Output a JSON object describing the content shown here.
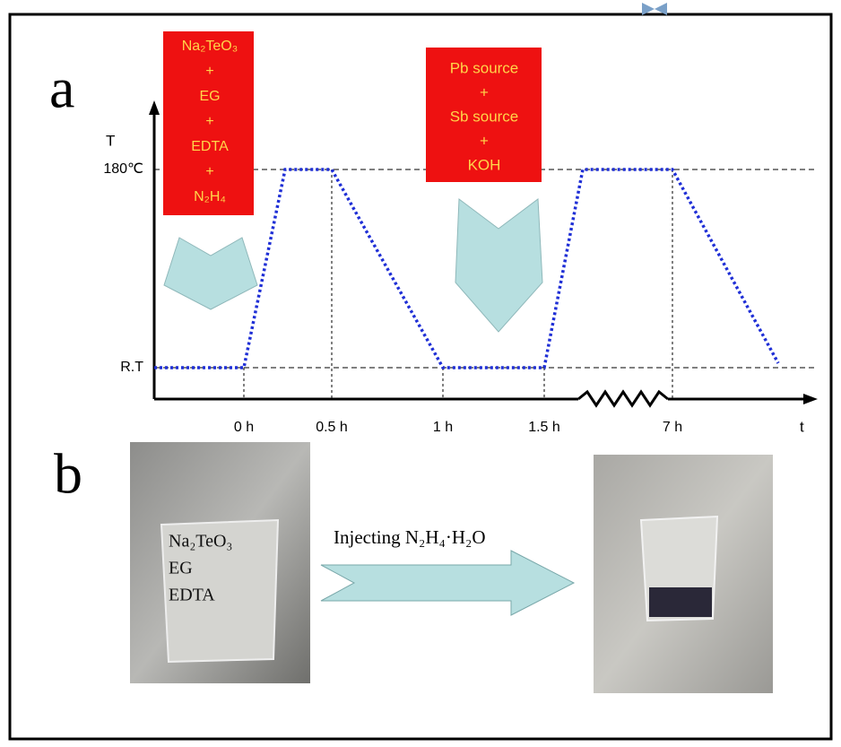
{
  "panel_a": {
    "label": "a",
    "y_axis_label": "T",
    "x_axis_label": "t",
    "temperature_labels": [
      "180℃",
      "R.T"
    ],
    "time_labels": [
      "0 h",
      "0.5 h",
      "1 h",
      "1.5 h",
      "7 h"
    ],
    "box_1": [
      "Na₂TeO₃",
      "+",
      "EG",
      "+",
      "EDTA",
      "+",
      "N₂H₄"
    ],
    "box_2": [
      "Pb source",
      "+",
      "Sb source",
      "+",
      "KOH"
    ]
  },
  "panel_b": {
    "label": "b",
    "beaker_contents": [
      "Na₂TeO₃",
      "EG",
      "EDTA"
    ],
    "arrow_text": "Injecting N₂H₄·H₂O"
  }
}
